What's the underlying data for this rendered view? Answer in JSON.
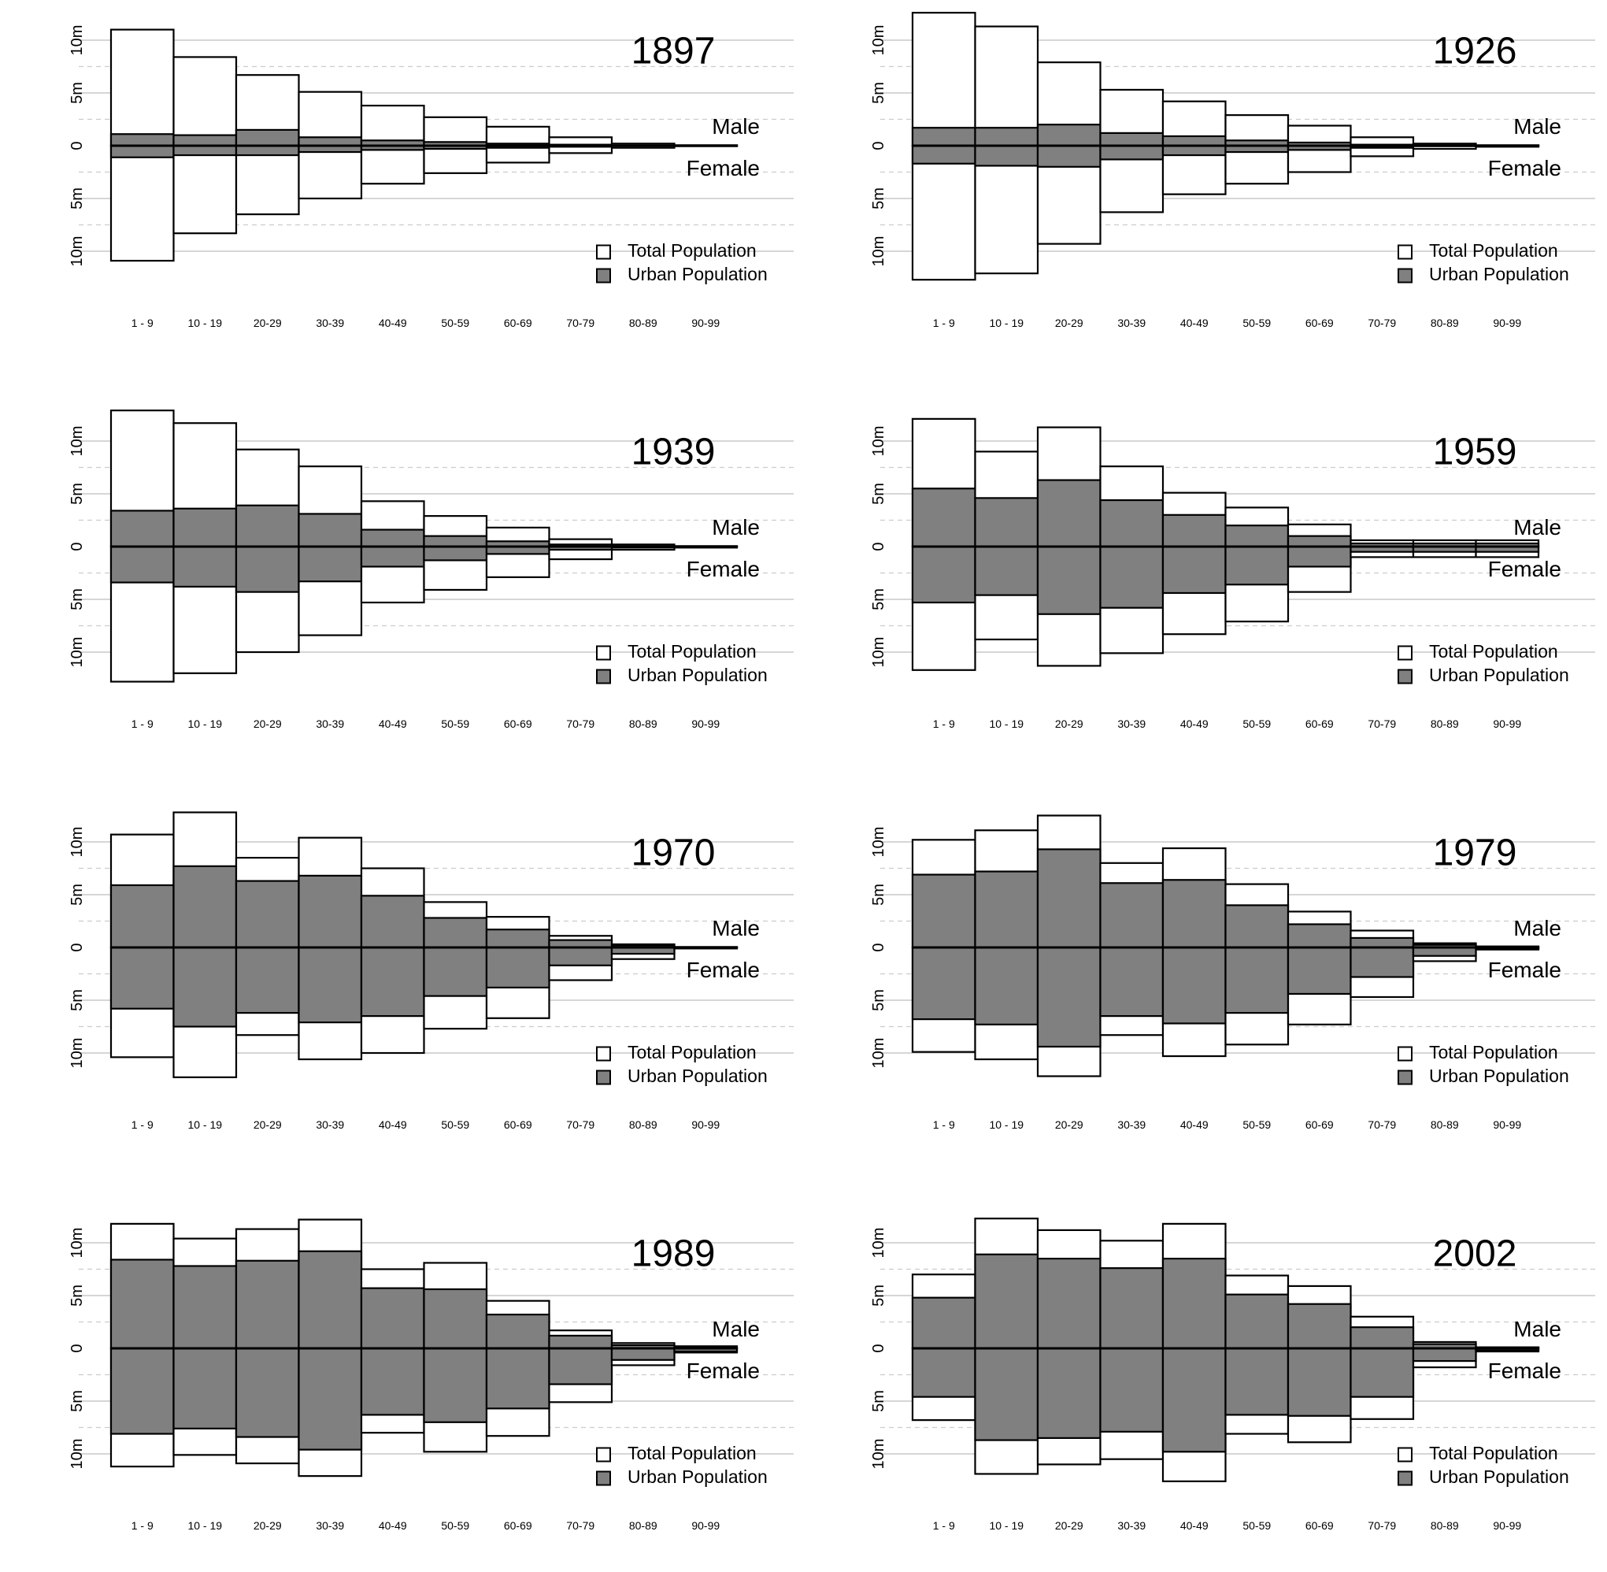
{
  "chart_data": [
    {
      "type": "bar",
      "title": "1897",
      "categories": [
        "1 - 9",
        "10 - 19",
        "20-29",
        "30-39",
        "40-49",
        "50-59",
        "60-69",
        "70-79",
        "80-89",
        "90-99"
      ],
      "y_ticks": [
        "10m",
        "5m",
        "0",
        "5m",
        "10m"
      ],
      "ylim": [
        -12,
        12
      ],
      "upper_label": "Male",
      "lower_label": "Female",
      "legend": [
        "Total Population",
        "Urban Population"
      ],
      "series": [
        {
          "name": "Total Population",
          "male": [
            11.0,
            8.4,
            6.7,
            5.1,
            3.8,
            2.7,
            1.8,
            0.8,
            0.2,
            0.05
          ],
          "female": [
            10.9,
            8.3,
            6.5,
            5.0,
            3.6,
            2.6,
            1.6,
            0.7,
            0.2,
            0.05
          ]
        },
        {
          "name": "Urban Population",
          "male": [
            1.1,
            1.0,
            1.5,
            0.8,
            0.5,
            0.35,
            0.2,
            0.1,
            0.03,
            0.01
          ],
          "female": [
            1.1,
            0.9,
            0.9,
            0.6,
            0.4,
            0.3,
            0.2,
            0.1,
            0.03,
            0.01
          ]
        }
      ]
    },
    {
      "type": "bar",
      "title": "1926",
      "categories": [
        "1 - 9",
        "10 - 19",
        "20-29",
        "30-39",
        "40-49",
        "50-59",
        "60-69",
        "70-79",
        "80-89",
        "90-99"
      ],
      "y_ticks": [
        "10m",
        "5m",
        "0",
        "5m",
        "10m"
      ],
      "ylim": [
        -12,
        12
      ],
      "upper_label": "Male",
      "lower_label": "Female",
      "legend": [
        "Total Population",
        "Urban Population"
      ],
      "series": [
        {
          "name": "Total Population",
          "male": [
            12.6,
            11.3,
            7.9,
            5.3,
            4.2,
            2.9,
            1.9,
            0.8,
            0.2,
            0.05
          ],
          "female": [
            12.7,
            12.1,
            9.3,
            6.3,
            4.6,
            3.6,
            2.5,
            1.0,
            0.3,
            0.1
          ]
        },
        {
          "name": "Urban Population",
          "male": [
            1.7,
            1.7,
            2.0,
            1.2,
            0.9,
            0.5,
            0.3,
            0.1,
            0.05,
            0.01
          ],
          "female": [
            1.7,
            1.9,
            2.0,
            1.3,
            0.9,
            0.6,
            0.4,
            0.2,
            0.05,
            0.02
          ]
        }
      ]
    },
    {
      "type": "bar",
      "title": "1939",
      "categories": [
        "1 - 9",
        "10 - 19",
        "20-29",
        "30-39",
        "40-49",
        "50-59",
        "60-69",
        "70-79",
        "80-89",
        "90-99"
      ],
      "y_ticks": [
        "10m",
        "5m",
        "0",
        "5m",
        "10m"
      ],
      "ylim": [
        -12,
        12
      ],
      "upper_label": "Male",
      "lower_label": "Female",
      "legend": [
        "Total Population",
        "Urban Population"
      ],
      "series": [
        {
          "name": "Total Population",
          "male": [
            12.9,
            11.7,
            9.2,
            7.6,
            4.3,
            2.9,
            1.8,
            0.7,
            0.2,
            0.05
          ],
          "female": [
            12.8,
            12.0,
            10.0,
            8.4,
            5.3,
            4.1,
            2.9,
            1.2,
            0.3,
            0.1
          ]
        },
        {
          "name": "Urban Population",
          "male": [
            3.4,
            3.6,
            3.9,
            3.1,
            1.6,
            1.0,
            0.5,
            0.2,
            0.05,
            0.01
          ],
          "female": [
            3.4,
            3.8,
            4.3,
            3.3,
            1.9,
            1.3,
            0.7,
            0.3,
            0.1,
            0.02
          ]
        }
      ]
    },
    {
      "type": "bar",
      "title": "1959",
      "categories": [
        "1 - 9",
        "10 - 19",
        "20-29",
        "30-39",
        "40-49",
        "50-59",
        "60-69",
        "70-79",
        "80-89",
        "90-99"
      ],
      "y_ticks": [
        "10m",
        "5m",
        "0",
        "5m",
        "10m"
      ],
      "ylim": [
        -12,
        12
      ],
      "upper_label": "Male",
      "lower_label": "Female",
      "legend": [
        "Total Population",
        "Urban Population"
      ],
      "series": [
        {
          "name": "Total Population",
          "male": [
            12.1,
            9.0,
            11.3,
            7.6,
            5.1,
            3.7,
            2.1,
            0.6,
            0.6,
            0.6
          ],
          "female": [
            11.7,
            8.8,
            11.3,
            10.1,
            8.3,
            7.1,
            4.3,
            1.0,
            1.0,
            1.0
          ]
        },
        {
          "name": "Urban Population",
          "male": [
            5.5,
            4.6,
            6.3,
            4.4,
            3.0,
            2.0,
            1.0,
            0.3,
            0.3,
            0.3
          ],
          "female": [
            5.3,
            4.6,
            6.4,
            5.8,
            4.4,
            3.6,
            1.9,
            0.5,
            0.5,
            0.5
          ]
        }
      ]
    },
    {
      "type": "bar",
      "title": "1970",
      "categories": [
        "1 - 9",
        "10 - 19",
        "20-29",
        "30-39",
        "40-49",
        "50-59",
        "60-69",
        "70-79",
        "80-89",
        "90-99"
      ],
      "y_ticks": [
        "10m",
        "5m",
        "0",
        "5m",
        "10m"
      ],
      "ylim": [
        -12,
        12
      ],
      "upper_label": "Male",
      "lower_label": "Female",
      "legend": [
        "Total Population",
        "Urban Population"
      ],
      "series": [
        {
          "name": "Total Population",
          "male": [
            10.7,
            12.8,
            8.5,
            10.4,
            7.5,
            4.3,
            2.9,
            1.1,
            0.3,
            0.05
          ],
          "female": [
            10.4,
            12.3,
            8.3,
            10.6,
            10.0,
            7.7,
            6.7,
            3.1,
            1.1,
            0.1
          ]
        },
        {
          "name": "Urban Population",
          "male": [
            5.9,
            7.7,
            6.3,
            6.8,
            4.9,
            2.8,
            1.7,
            0.7,
            0.2,
            0.03
          ],
          "female": [
            5.8,
            7.5,
            6.2,
            7.1,
            6.5,
            4.6,
            3.8,
            1.7,
            0.6,
            0.05
          ]
        }
      ]
    },
    {
      "type": "bar",
      "title": "1979",
      "categories": [
        "1 - 9",
        "10 - 19",
        "20-29",
        "30-39",
        "40-49",
        "50-59",
        "60-69",
        "70-79",
        "80-89",
        "90-99"
      ],
      "y_ticks": [
        "10m",
        "5m",
        "0",
        "5m",
        "10m"
      ],
      "ylim": [
        -12,
        12
      ],
      "upper_label": "Male",
      "lower_label": "Female",
      "legend": [
        "Total Population",
        "Urban Population"
      ],
      "series": [
        {
          "name": "Total Population",
          "male": [
            10.2,
            11.1,
            12.5,
            8.0,
            9.4,
            6.0,
            3.4,
            1.6,
            0.4,
            0.1
          ],
          "female": [
            9.9,
            10.6,
            12.2,
            8.3,
            10.3,
            9.2,
            7.3,
            4.7,
            1.3,
            0.2
          ]
        },
        {
          "name": "Urban Population",
          "male": [
            6.9,
            7.2,
            9.3,
            6.1,
            6.4,
            4.0,
            2.2,
            0.9,
            0.25,
            0.05
          ],
          "female": [
            6.8,
            7.3,
            9.4,
            6.5,
            7.2,
            6.2,
            4.4,
            2.8,
            0.8,
            0.1
          ]
        }
      ]
    },
    {
      "type": "bar",
      "title": "1989",
      "categories": [
        "1 - 9",
        "10 - 19",
        "20-29",
        "30-39",
        "40-49",
        "50-59",
        "60-69",
        "70-79",
        "80-89",
        "90-99"
      ],
      "y_ticks": [
        "10m",
        "5m",
        "0",
        "5m",
        "10m"
      ],
      "ylim": [
        -12,
        12
      ],
      "upper_label": "Male",
      "lower_label": "Female",
      "legend": [
        "Total Population",
        "Urban Population"
      ],
      "series": [
        {
          "name": "Total Population",
          "male": [
            11.8,
            10.4,
            11.3,
            12.2,
            7.5,
            8.1,
            4.5,
            1.7,
            0.5,
            0.2
          ],
          "female": [
            11.2,
            10.1,
            10.9,
            12.1,
            8.0,
            9.8,
            8.3,
            5.1,
            1.6,
            0.4
          ]
        },
        {
          "name": "Urban Population",
          "male": [
            8.4,
            7.8,
            8.3,
            9.2,
            5.7,
            5.6,
            3.2,
            1.2,
            0.3,
            0.1
          ],
          "female": [
            8.1,
            7.6,
            8.4,
            9.6,
            6.3,
            7.0,
            5.7,
            3.4,
            1.1,
            0.3
          ]
        }
      ]
    },
    {
      "type": "bar",
      "title": "2002",
      "categories": [
        "1 - 9",
        "10 - 19",
        "20-29",
        "30-39",
        "40-49",
        "50-59",
        "60-69",
        "70-79",
        "80-89",
        "90-99"
      ],
      "y_ticks": [
        "10m",
        "5m",
        "0",
        "5m",
        "10m"
      ],
      "ylim": [
        -12,
        12
      ],
      "upper_label": "Male",
      "lower_label": "Female",
      "legend": [
        "Total Population",
        "Urban Population"
      ],
      "series": [
        {
          "name": "Total Population",
          "male": [
            7.0,
            12.3,
            11.2,
            10.2,
            11.8,
            6.9,
            5.9,
            3.0,
            0.6,
            0.1
          ],
          "female": [
            6.8,
            11.9,
            11.0,
            10.5,
            12.6,
            8.1,
            8.9,
            6.7,
            1.8,
            0.3
          ]
        },
        {
          "name": "Urban Population",
          "male": [
            4.8,
            8.9,
            8.5,
            7.6,
            8.5,
            5.1,
            4.2,
            2.0,
            0.4,
            0.08
          ],
          "female": [
            4.6,
            8.7,
            8.5,
            7.9,
            9.8,
            6.3,
            6.4,
            4.6,
            1.2,
            0.2
          ]
        }
      ]
    }
  ]
}
